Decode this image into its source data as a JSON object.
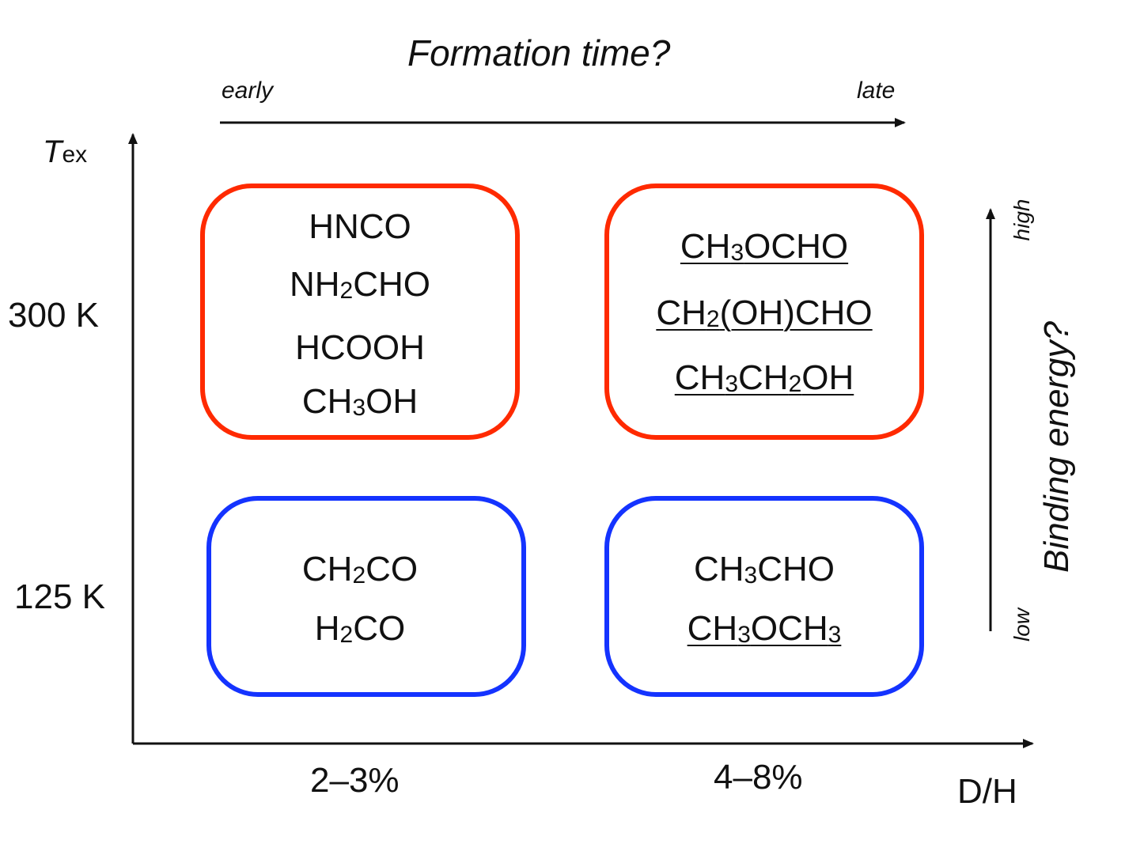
{
  "title": "Formation time?",
  "time_axis": {
    "left": "early",
    "right": "late"
  },
  "y_axis": {
    "label_main": "T",
    "label_sub": "ex",
    "ticks": [
      "300 K",
      "125 K"
    ]
  },
  "x_axis": {
    "label": "D/H",
    "ticks": [
      "2–3%",
      "4–8%"
    ]
  },
  "binding_axis": {
    "label": "Binding energy?",
    "top": "high",
    "bottom": "low"
  },
  "colors": {
    "warm_box": "#ff2a00",
    "cold_box": "#1433ff",
    "axis": "#111111"
  },
  "boxes": [
    {
      "name": "300K-low-DH",
      "color": "warm",
      "molecules": [
        {
          "parts": [
            "HNCO"
          ],
          "underlined": false
        },
        {
          "parts": [
            "NH",
            "2",
            "CHO"
          ],
          "underlined": false
        },
        {
          "parts": [
            "HCOOH"
          ],
          "underlined": false
        },
        {
          "parts": [
            "CH",
            "3",
            "OH"
          ],
          "underlined": false
        }
      ]
    },
    {
      "name": "300K-high-DH",
      "color": "warm",
      "molecules": [
        {
          "parts": [
            "CH",
            "3",
            "OCHO"
          ],
          "underlined": true
        },
        {
          "parts": [
            "CH",
            "2",
            "(OH)CHO"
          ],
          "underlined": true
        },
        {
          "parts": [
            "CH",
            "3",
            "CH",
            "2",
            "OH"
          ],
          "underlined": true
        }
      ]
    },
    {
      "name": "125K-low-DH",
      "color": "cold",
      "molecules": [
        {
          "parts": [
            "CH",
            "2",
            "CO"
          ],
          "underlined": false
        },
        {
          "parts": [
            "H",
            "2",
            "CO"
          ],
          "underlined": false
        }
      ]
    },
    {
      "name": "125K-high-DH",
      "color": "cold",
      "molecules": [
        {
          "parts": [
            "CH",
            "3",
            "CHO"
          ],
          "underlined": false
        },
        {
          "parts": [
            "CH",
            "3",
            "OCH",
            "3"
          ],
          "underlined": true
        }
      ]
    }
  ]
}
